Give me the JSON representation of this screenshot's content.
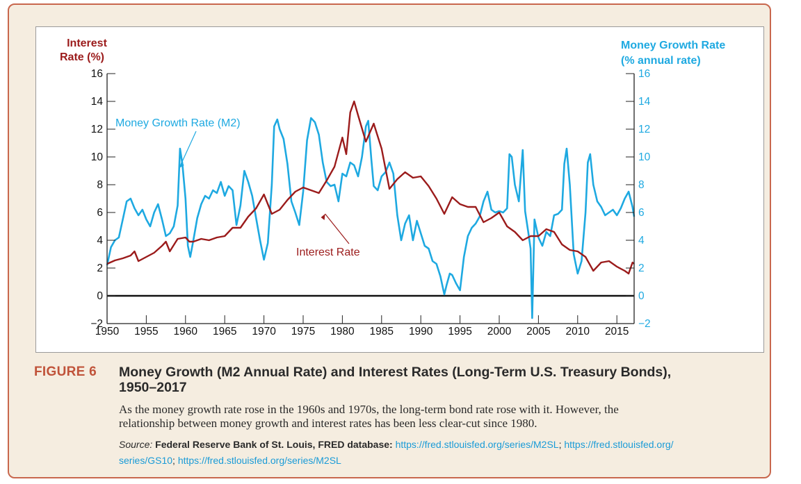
{
  "figure": {
    "label": "FIGURE 6",
    "title_line1": "Money Growth (M2 Annual Rate) and Interest Rates (Long-Term U.S. Treasury Bonds),",
    "title_line2": "1950–2017",
    "description_line1": "As the money growth rate rose in the 1960s and 1970s, the long-term bond rate rose with it. However, the",
    "description_line2": "relationship between money growth and interest rates has been less clear-cut since 1980.",
    "source_lead": "Source:",
    "source_org": "Federal Reserve Bank of St. Louis, FRED database:",
    "source_link1": "https://fred.stlouisfed.org/series/M2SL",
    "source_link2": "https://fred.stlouisfed.org/series/GS10",
    "source_link3": "https://fred.stlouisfed.org/series/M2SL"
  },
  "colors": {
    "interest": "#9b1b1b",
    "money": "#1ea9e1",
    "frame_border": "#c8674d",
    "frame_bg": "#f5ede0",
    "figure_label": "#c0533a"
  },
  "chart_data": {
    "type": "line",
    "ylabel_left_line1": "Interest",
    "ylabel_left_line2": "Rate (%)",
    "ylabel_right_line1": "Money Growth Rate",
    "ylabel_right_line2": "(% annual rate)",
    "xlim": [
      1950,
      2017.2
    ],
    "ylim": [
      -2,
      16
    ],
    "y_ticks": [
      "16",
      "14",
      "12",
      "10",
      "8",
      "6",
      "4",
      "2",
      "0",
      "−2"
    ],
    "y_tick_values": [
      16,
      14,
      12,
      10,
      8,
      6,
      4,
      2,
      0,
      -2
    ],
    "x_ticks": [
      1950,
      1955,
      1960,
      1965,
      1970,
      1975,
      1980,
      1985,
      1990,
      1995,
      2000,
      2005,
      2010,
      2015
    ],
    "zero_line": 0,
    "annotations": [
      {
        "text": "Money Growth Rate (M2)",
        "series": "money",
        "point": [
          1959.2,
          9.2
        ]
      },
      {
        "text": "Interest Rate",
        "series": "interest",
        "point": [
          1977.8,
          5.9
        ]
      }
    ],
    "series": [
      {
        "key": "money",
        "points": [
          [
            1950,
            2.2
          ],
          [
            1950.5,
            3.5
          ],
          [
            1951,
            4
          ],
          [
            1951.5,
            4.2
          ],
          [
            1952,
            5.5
          ],
          [
            1952.5,
            6.8
          ],
          [
            1953,
            7
          ],
          [
            1953.5,
            6.3
          ],
          [
            1954,
            5.8
          ],
          [
            1954.5,
            6.2
          ],
          [
            1955,
            5.5
          ],
          [
            1955.5,
            5
          ],
          [
            1956,
            6
          ],
          [
            1956.5,
            6.6
          ],
          [
            1957,
            5.5
          ],
          [
            1957.5,
            4.3
          ],
          [
            1958,
            4.5
          ],
          [
            1958.5,
            5
          ],
          [
            1959,
            6.5
          ],
          [
            1959.3,
            10.6
          ],
          [
            1959.6,
            9.5
          ],
          [
            1960,
            7
          ],
          [
            1960.3,
            3.6
          ],
          [
            1960.6,
            2.8
          ],
          [
            1961,
            4
          ],
          [
            1961.5,
            5.6
          ],
          [
            1962,
            6.6
          ],
          [
            1962.5,
            7.2
          ],
          [
            1963,
            7
          ],
          [
            1963.5,
            7.6
          ],
          [
            1964,
            7.4
          ],
          [
            1964.5,
            8.2
          ],
          [
            1965,
            7.2
          ],
          [
            1965.5,
            7.9
          ],
          [
            1966,
            7.6
          ],
          [
            1966.5,
            5.1
          ],
          [
            1967,
            6.5
          ],
          [
            1967.5,
            9
          ],
          [
            1968,
            8.2
          ],
          [
            1968.5,
            7.2
          ],
          [
            1969,
            5.6
          ],
          [
            1969.5,
            4
          ],
          [
            1970,
            2.6
          ],
          [
            1970.5,
            3.8
          ],
          [
            1971,
            8
          ],
          [
            1971.3,
            12.2
          ],
          [
            1971.7,
            12.7
          ],
          [
            1972,
            12
          ],
          [
            1972.5,
            11.3
          ],
          [
            1973,
            9.5
          ],
          [
            1973.5,
            6.8
          ],
          [
            1974,
            6
          ],
          [
            1974.5,
            5.1
          ],
          [
            1975,
            7.5
          ],
          [
            1975.5,
            11.2
          ],
          [
            1976,
            12.8
          ],
          [
            1976.5,
            12.5
          ],
          [
            1977,
            11.6
          ],
          [
            1977.5,
            9.6
          ],
          [
            1978,
            8.2
          ],
          [
            1978.5,
            7.9
          ],
          [
            1979,
            8
          ],
          [
            1979.5,
            6.8
          ],
          [
            1980,
            8.8
          ],
          [
            1980.5,
            8.6
          ],
          [
            1981,
            9.6
          ],
          [
            1981.5,
            9.4
          ],
          [
            1982,
            8.6
          ],
          [
            1982.5,
            10
          ],
          [
            1983,
            12.2
          ],
          [
            1983.3,
            12.6
          ],
          [
            1983.7,
            9.8
          ],
          [
            1984,
            7.9
          ],
          [
            1984.5,
            7.6
          ],
          [
            1985,
            8.6
          ],
          [
            1985.5,
            8.9
          ],
          [
            1986,
            9.6
          ],
          [
            1986.5,
            8.8
          ],
          [
            1987,
            5.8
          ],
          [
            1987.5,
            4
          ],
          [
            1988,
            5.2
          ],
          [
            1988.5,
            5.8
          ],
          [
            1989,
            4
          ],
          [
            1989.5,
            5.4
          ],
          [
            1990,
            4.5
          ],
          [
            1990.5,
            3.6
          ],
          [
            1991,
            3.4
          ],
          [
            1991.5,
            2.5
          ],
          [
            1992,
            2.3
          ],
          [
            1992.5,
            1.4
          ],
          [
            1993,
            0.1
          ],
          [
            1993.3,
            0.8
          ],
          [
            1993.7,
            1.6
          ],
          [
            1994,
            1.5
          ],
          [
            1994.5,
            0.9
          ],
          [
            1995,
            0.4
          ],
          [
            1995.5,
            2.8
          ],
          [
            1996,
            4.3
          ],
          [
            1996.5,
            4.9
          ],
          [
            1997,
            5.2
          ],
          [
            1997.5,
            5.7
          ],
          [
            1998,
            6.8
          ],
          [
            1998.5,
            7.5
          ],
          [
            1999,
            6.2
          ],
          [
            1999.5,
            6
          ],
          [
            2000,
            6.1
          ],
          [
            2000.5,
            6
          ],
          [
            2001,
            6.3
          ],
          [
            2001.3,
            10.2
          ],
          [
            2001.6,
            10
          ],
          [
            2002,
            8
          ],
          [
            2002.5,
            6.8
          ],
          [
            2003,
            10.5
          ],
          [
            2003.3,
            6.1
          ],
          [
            2003.7,
            4.6
          ],
          [
            2004,
            3.4
          ],
          [
            2004.2,
            -1.6
          ],
          [
            2004.5,
            5.5
          ],
          [
            2005,
            4.2
          ],
          [
            2005.5,
            3.6
          ],
          [
            2006,
            4.6
          ],
          [
            2006.5,
            4.3
          ],
          [
            2007,
            5.8
          ],
          [
            2007.5,
            5.9
          ],
          [
            2008,
            6.2
          ],
          [
            2008.3,
            9.5
          ],
          [
            2008.6,
            10.6
          ],
          [
            2009,
            8
          ],
          [
            2009.5,
            3
          ],
          [
            2010,
            1.6
          ],
          [
            2010.5,
            2.5
          ],
          [
            2011,
            6
          ],
          [
            2011.3,
            9.6
          ],
          [
            2011.6,
            10.2
          ],
          [
            2012,
            8
          ],
          [
            2012.5,
            6.8
          ],
          [
            2013,
            6.4
          ],
          [
            2013.5,
            5.8
          ],
          [
            2014,
            6
          ],
          [
            2014.5,
            6.2
          ],
          [
            2015,
            5.8
          ],
          [
            2015.5,
            6.3
          ],
          [
            2016,
            7
          ],
          [
            2016.5,
            7.5
          ],
          [
            2017,
            6.4
          ],
          [
            2017.2,
            5.7
          ]
        ]
      },
      {
        "key": "interest",
        "points": [
          [
            1950,
            2.3
          ],
          [
            1951,
            2.55
          ],
          [
            1952,
            2.7
          ],
          [
            1953,
            2.9
          ],
          [
            1953.5,
            3.2
          ],
          [
            1954,
            2.5
          ],
          [
            1955,
            2.8
          ],
          [
            1956,
            3.1
          ],
          [
            1957,
            3.6
          ],
          [
            1957.5,
            3.9
          ],
          [
            1958,
            3.2
          ],
          [
            1959,
            4.1
          ],
          [
            1960,
            4.2
          ],
          [
            1960.5,
            3.9
          ],
          [
            1961,
            3.9
          ],
          [
            1962,
            4.1
          ],
          [
            1963,
            4.0
          ],
          [
            1964,
            4.2
          ],
          [
            1965,
            4.3
          ],
          [
            1966,
            4.9
          ],
          [
            1967,
            4.9
          ],
          [
            1968,
            5.7
          ],
          [
            1969,
            6.3
          ],
          [
            1970,
            7.3
          ],
          [
            1970.5,
            6.6
          ],
          [
            1971,
            5.9
          ],
          [
            1972,
            6.2
          ],
          [
            1973,
            6.9
          ],
          [
            1974,
            7.5
          ],
          [
            1975,
            7.8
          ],
          [
            1976,
            7.6
          ],
          [
            1977,
            7.4
          ],
          [
            1978,
            8.3
          ],
          [
            1979,
            9.3
          ],
          [
            1980,
            11.4
          ],
          [
            1980.5,
            10.2
          ],
          [
            1981,
            13.2
          ],
          [
            1981.5,
            14.0
          ],
          [
            1982,
            13.0
          ],
          [
            1983,
            11.1
          ],
          [
            1984,
            12.4
          ],
          [
            1985,
            10.6
          ],
          [
            1986,
            7.7
          ],
          [
            1987,
            8.4
          ],
          [
            1988,
            8.9
          ],
          [
            1989,
            8.5
          ],
          [
            1990,
            8.6
          ],
          [
            1991,
            7.9
          ],
          [
            1992,
            7.0
          ],
          [
            1993,
            5.9
          ],
          [
            1994,
            7.1
          ],
          [
            1995,
            6.6
          ],
          [
            1996,
            6.4
          ],
          [
            1997,
            6.4
          ],
          [
            1998,
            5.3
          ],
          [
            1999,
            5.6
          ],
          [
            2000,
            6.0
          ],
          [
            2001,
            5.0
          ],
          [
            2002,
            4.6
          ],
          [
            2003,
            4.0
          ],
          [
            2004,
            4.3
          ],
          [
            2005,
            4.3
          ],
          [
            2006,
            4.8
          ],
          [
            2007,
            4.6
          ],
          [
            2008,
            3.7
          ],
          [
            2009,
            3.3
          ],
          [
            2010,
            3.2
          ],
          [
            2011,
            2.8
          ],
          [
            2012,
            1.8
          ],
          [
            2013,
            2.4
          ],
          [
            2014,
            2.5
          ],
          [
            2015,
            2.1
          ],
          [
            2016,
            1.8
          ],
          [
            2016.5,
            1.6
          ],
          [
            2017,
            2.4
          ],
          [
            2017.2,
            2.3
          ]
        ]
      }
    ]
  }
}
